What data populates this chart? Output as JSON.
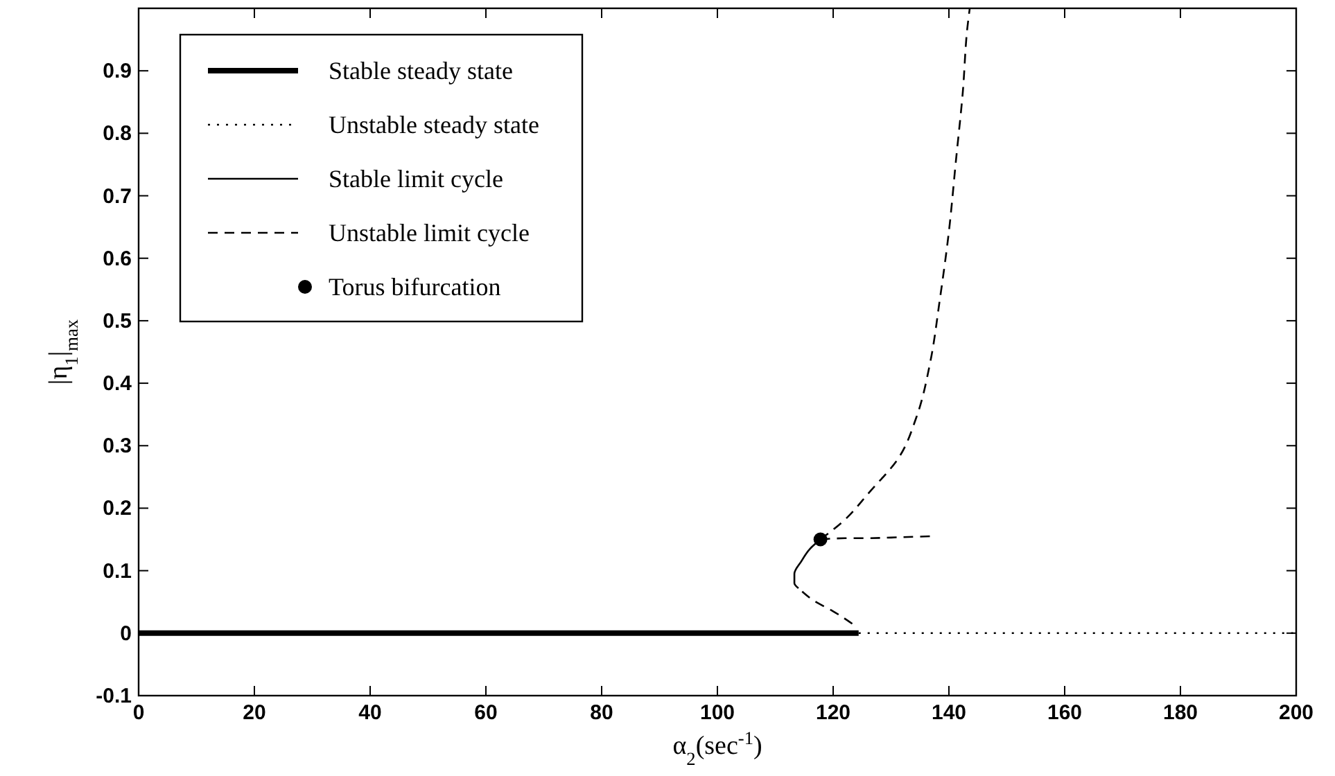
{
  "chart_data": {
    "type": "line",
    "xlabel": "α$_{2}$(sec$^{-1}$)",
    "ylabel": "|η$_{1}$|$_{max}$",
    "xlim": [
      0,
      200
    ],
    "xticks": [
      0,
      20,
      40,
      60,
      80,
      100,
      120,
      140,
      160,
      180,
      200
    ],
    "ylim": [
      -0.1,
      1
    ],
    "yticks": [
      -0.1,
      0,
      0.1,
      0.2,
      0.3,
      0.4,
      0.5,
      0.6,
      0.7,
      0.8,
      0.9
    ],
    "grid": false,
    "legend": "top left",
    "series": [
      {
        "name": "Stable steady state",
        "line_style": "solid",
        "color": "#000000",
        "x": [
          0,
          124.4
        ],
        "values": [
          0,
          0
        ]
      },
      {
        "name": "Unstable steady state",
        "line_style": "dotted",
        "color": "#000000",
        "x": [
          124.4,
          200
        ],
        "values": [
          0,
          0
        ]
      },
      {
        "name": "Stable limit cycle",
        "line_style": "solid",
        "color": "#000000",
        "x": [
          117.8,
          116,
          114.5,
          113.3,
          113.3,
          114
        ],
        "values": [
          0.15,
          0.135,
          0.115,
          0.095,
          0.08,
          0.072
        ]
      },
      {
        "name": "Unstable limit cycle",
        "line_style": "dashed",
        "color": "#000000",
        "x": [
          123.3,
          120,
          117,
          114
        ],
        "values": [
          0.015,
          0.035,
          0.05,
          0.072
        ]
      },
      {
        "line_style": "dashed",
        "color": "#000000",
        "x": [
          117.8,
          122,
          126,
          130,
          133,
          136.8
        ],
        "values": [
          0.15,
          0.152,
          0.152,
          0.153,
          0.154,
          0.155
        ]
      },
      {
        "line_style": "dashed",
        "color": "#000000",
        "x": [
          117.8,
          121.6,
          126.4,
          131.2,
          134.4,
          136.8,
          138.4,
          140,
          141.2,
          142.4,
          143.2,
          143.6
        ],
        "values": [
          0.15,
          0.178,
          0.227,
          0.279,
          0.346,
          0.435,
          0.532,
          0.643,
          0.755,
          0.866,
          0.97,
          1.0
        ]
      },
      {
        "name": "Torus bifurcation",
        "type": "scatter",
        "marker": "circle",
        "color": "#000000",
        "x": [
          117.8
        ],
        "values": [
          0.15
        ]
      }
    ]
  }
}
